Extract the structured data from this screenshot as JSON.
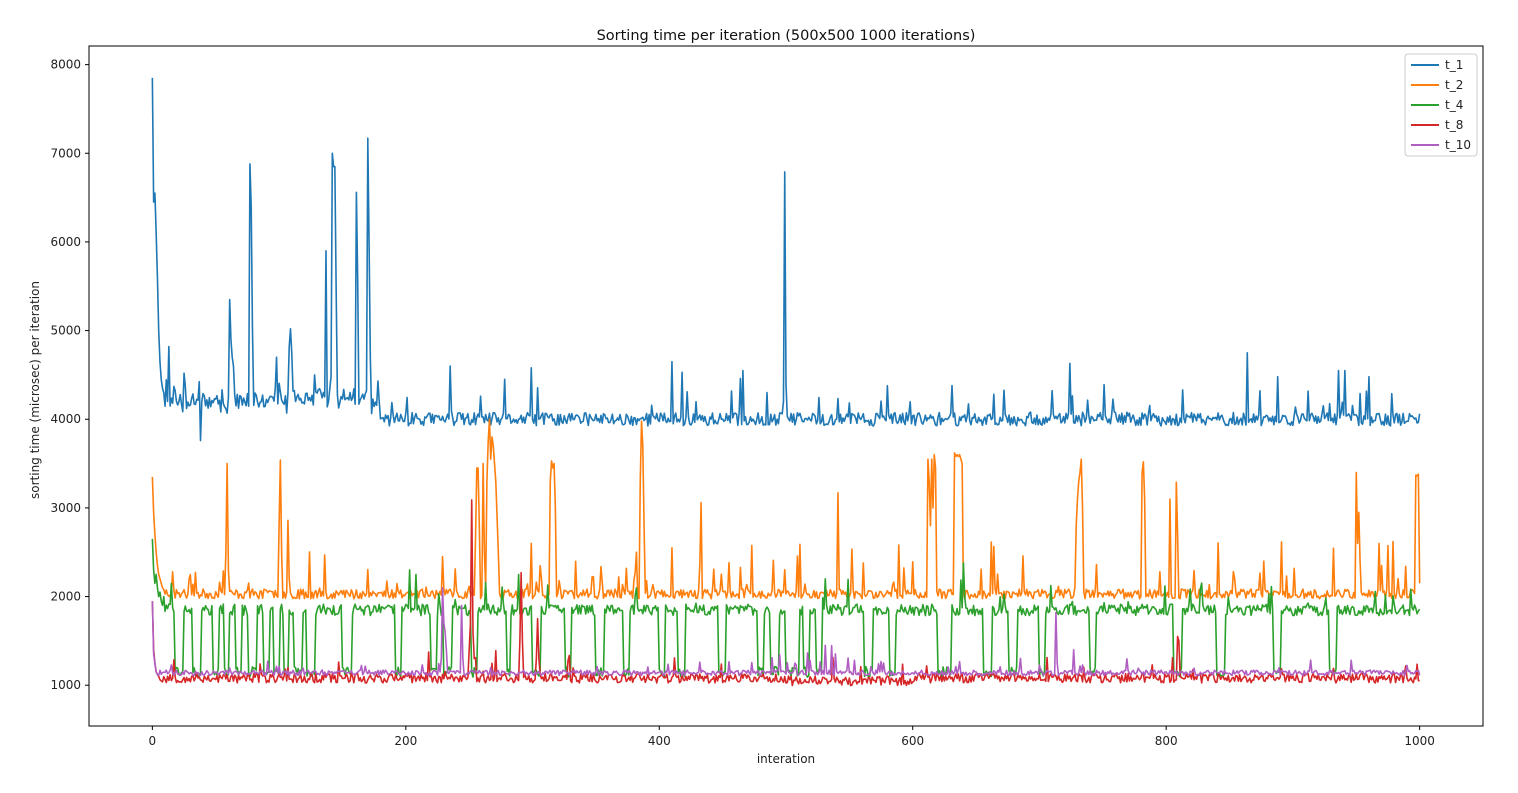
{
  "chart_data": {
    "type": "line",
    "title": "Sorting time per iteration (500x500 1000 iterations)",
    "xlabel": "interation",
    "ylabel": "sorting time (microsec) per iteration",
    "xlim": [
      -50,
      1050
    ],
    "ylim": [
      540,
      8210
    ],
    "xticks": [
      0,
      200,
      400,
      600,
      800,
      1000
    ],
    "yticks": [
      1000,
      2000,
      3000,
      4000,
      5000,
      6000,
      7000,
      8000
    ],
    "grid": false,
    "legend_position": "top-right",
    "series": [
      {
        "name": "t_1",
        "color": "#1f77b4",
        "base": 4000,
        "noise": 75,
        "seed": 11,
        "start": [
          7850,
          6450,
          6550,
          6100,
          5600,
          5000,
          4650,
          4450,
          4350,
          4300
        ],
        "points": [
          [
            12,
            4200
          ],
          [
            13,
            4820
          ],
          [
            14,
            4150
          ],
          [
            38,
            3760
          ],
          [
            61,
            5350
          ],
          [
            62,
            4900
          ],
          [
            63,
            4700
          ],
          [
            64,
            4600
          ],
          [
            77,
            6880
          ],
          [
            78,
            6400
          ],
          [
            79,
            5000
          ],
          [
            98,
            4700
          ],
          [
            108,
            4820
          ],
          [
            109,
            5020
          ],
          [
            110,
            4750
          ],
          [
            128,
            4500
          ],
          [
            137,
            5900
          ],
          [
            142,
            7000
          ],
          [
            143,
            6850
          ],
          [
            144,
            6850
          ],
          [
            145,
            5500
          ],
          [
            161,
            6560
          ],
          [
            162,
            5600
          ],
          [
            170,
            7170
          ],
          [
            171,
            6000
          ],
          [
            172,
            4700
          ],
          [
            235,
            4600
          ],
          [
            278,
            4450
          ],
          [
            299,
            4580
          ],
          [
            410,
            4650
          ],
          [
            418,
            4530
          ],
          [
            464,
            4460
          ],
          [
            466,
            4550
          ],
          [
            498,
            4200
          ],
          [
            499,
            6790
          ],
          [
            500,
            4400
          ],
          [
            724,
            4630
          ],
          [
            751,
            4390
          ],
          [
            864,
            4750
          ],
          [
            888,
            4480
          ],
          [
            936,
            4550
          ],
          [
            941,
            4550
          ],
          [
            960,
            4480
          ]
        ]
      },
      {
        "name": "t_2",
        "color": "#ff7f0e",
        "base": 2030,
        "noise": 55,
        "seed": 23,
        "start": [
          3350,
          2950,
          2700,
          2500,
          2350,
          2250,
          2200,
          2150,
          2100,
          2080
        ],
        "points": [
          [
            58,
            2500
          ],
          [
            59,
            3500
          ],
          [
            60,
            2300
          ],
          [
            100,
            2800
          ],
          [
            101,
            3540
          ],
          [
            102,
            2500
          ],
          [
            107,
            2860
          ],
          [
            108,
            2200
          ],
          [
            136,
            2470
          ],
          [
            229,
            2450
          ],
          [
            255,
            2650
          ],
          [
            256,
            3450
          ],
          [
            257,
            3450
          ],
          [
            258,
            2800
          ],
          [
            261,
            3500
          ],
          [
            262,
            2500
          ],
          [
            263,
            2100
          ],
          [
            264,
            3300
          ],
          [
            265,
            3750
          ],
          [
            266,
            4000
          ],
          [
            267,
            3550
          ],
          [
            268,
            3800
          ],
          [
            269,
            3700
          ],
          [
            270,
            3500
          ],
          [
            271,
            3300
          ],
          [
            272,
            2900
          ],
          [
            273,
            2500
          ],
          [
            299,
            2600
          ],
          [
            314,
            3300
          ],
          [
            315,
            3530
          ],
          [
            316,
            3450
          ],
          [
            317,
            3500
          ],
          [
            318,
            3000
          ],
          [
            382,
            2500
          ],
          [
            385,
            3300
          ],
          [
            386,
            3980
          ],
          [
            387,
            3700
          ],
          [
            388,
            2800
          ],
          [
            410,
            2550
          ],
          [
            433,
            3060
          ],
          [
            541,
            3170
          ],
          [
            612,
            3550
          ],
          [
            613,
            3300
          ],
          [
            614,
            2800
          ],
          [
            615,
            3550
          ],
          [
            616,
            3000
          ],
          [
            617,
            3600
          ],
          [
            618,
            3450
          ],
          [
            633,
            3620
          ],
          [
            634,
            3580
          ],
          [
            635,
            3600
          ],
          [
            636,
            3580
          ],
          [
            637,
            3600
          ],
          [
            638,
            3550
          ],
          [
            639,
            3500
          ],
          [
            729,
            2800
          ],
          [
            730,
            3100
          ],
          [
            731,
            3300
          ],
          [
            732,
            3400
          ],
          [
            733,
            3550
          ],
          [
            734,
            3000
          ],
          [
            781,
            3400
          ],
          [
            782,
            3520
          ],
          [
            783,
            3100
          ],
          [
            803,
            3100
          ],
          [
            808,
            3290
          ],
          [
            809,
            2700
          ],
          [
            950,
            3400
          ],
          [
            951,
            2600
          ],
          [
            952,
            2950
          ],
          [
            953,
            2400
          ],
          [
            968,
            2600
          ],
          [
            979,
            2620
          ],
          [
            997,
            3370
          ],
          [
            998,
            3360
          ],
          [
            999,
            3380
          ],
          [
            1000,
            2150
          ]
        ]
      },
      {
        "name": "t_4",
        "color": "#2ca02c",
        "base": 1850,
        "noise": 65,
        "seed": 37,
        "start": [
          2650,
          2300,
          2150,
          2250,
          2100,
          2000,
          2050,
          1950,
          1900,
          2000
        ],
        "points": [
          [
            203,
            2300
          ],
          [
            208,
            2250
          ],
          [
            289,
            2250
          ],
          [
            531,
            2200
          ],
          [
            640,
            2380
          ],
          [
            641,
            2000
          ]
        ],
        "dips": [
          [
            18,
            24
          ],
          [
            32,
            38
          ],
          [
            48,
            52
          ],
          [
            57,
            60
          ],
          [
            66,
            70
          ],
          [
            76,
            82
          ],
          [
            88,
            92
          ],
          [
            96,
            100
          ],
          [
            104,
            107
          ],
          [
            112,
            118
          ],
          [
            122,
            128
          ],
          [
            150,
            157
          ],
          [
            192,
            196
          ],
          [
            220,
            224
          ],
          [
            230,
            236
          ],
          [
            252,
            256
          ],
          [
            280,
            282
          ],
          [
            300,
            306
          ],
          [
            326,
            330
          ],
          [
            350,
            356
          ],
          [
            372,
            376
          ],
          [
            400,
            404
          ],
          [
            415,
            420
          ],
          [
            447,
            452
          ],
          [
            478,
            482
          ],
          [
            488,
            494
          ],
          [
            500,
            504
          ],
          [
            505,
            510
          ],
          [
            514,
            518
          ],
          [
            524,
            528
          ],
          [
            562,
            568
          ],
          [
            582,
            586
          ],
          [
            620,
            630
          ],
          [
            656,
            662
          ],
          [
            676,
            682
          ],
          [
            700,
            704
          ],
          [
            740,
            744
          ],
          [
            806,
            812
          ],
          [
            840,
            846
          ],
          [
            885,
            890
          ],
          [
            929,
            934
          ]
        ]
      },
      {
        "name": "t_8",
        "color": "#d62728",
        "base": 1080,
        "noise": 55,
        "seed": 53,
        "start": [
          1950,
          1400,
          1250,
          1150,
          1120,
          1100
        ],
        "points": [
          [
            250,
            1400
          ],
          [
            251,
            1700
          ],
          [
            252,
            3090
          ],
          [
            253,
            1600
          ],
          [
            254,
            1300
          ],
          [
            290,
            1500
          ],
          [
            291,
            2270
          ],
          [
            292,
            1500
          ],
          [
            303,
            1300
          ],
          [
            304,
            1750
          ],
          [
            305,
            1300
          ],
          [
            809,
            1550
          ],
          [
            810,
            1500
          ]
        ]
      },
      {
        "name": "t_10",
        "color": "#b05ec2",
        "base": 1140,
        "noise": 30,
        "seed": 71,
        "start": [
          1950,
          1350,
          1250,
          1150,
          1120
        ],
        "points": [
          [
            228,
            1300
          ],
          [
            229,
            2100
          ],
          [
            230,
            1700
          ],
          [
            231,
            1600
          ],
          [
            232,
            1400
          ],
          [
            244,
            1900
          ],
          [
            245,
            1300
          ],
          [
            519,
            1280
          ],
          [
            531,
            1450
          ],
          [
            713,
            1820
          ],
          [
            714,
            1250
          ],
          [
            727,
            1400
          ]
        ]
      }
    ]
  }
}
